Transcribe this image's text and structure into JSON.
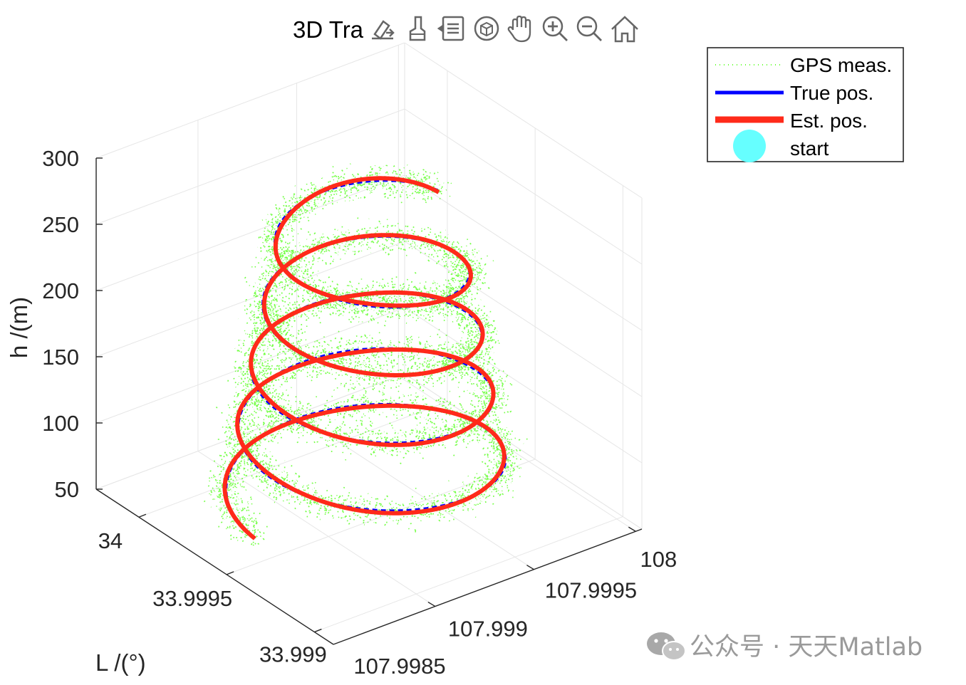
{
  "figure": {
    "title": "3D Tra",
    "toolbar": [
      {
        "icon": "export-icon"
      },
      {
        "icon": "brush-icon"
      },
      {
        "icon": "data-tips-icon"
      },
      {
        "icon": "rotate-3d-icon"
      },
      {
        "icon": "pan-hand-icon"
      },
      {
        "icon": "zoom-in-icon"
      },
      {
        "icon": "zoom-out-icon"
      },
      {
        "icon": "home-icon"
      }
    ],
    "watermark": "公众号 · 天天Matlab"
  },
  "chart_data": {
    "type": "line",
    "title": "3D Tra",
    "xlabel": "L /(°)",
    "zlabel": "h /(m)",
    "ylabel": "",
    "x_ticks": [
      "34",
      "33.9995",
      "33.999"
    ],
    "y_ticks": [
      "108",
      "107.9995",
      "107.999",
      "107.9985"
    ],
    "z_ticks": [
      "300",
      "250",
      "200",
      "150",
      "100",
      "50"
    ],
    "zlim": [
      50,
      300
    ],
    "grid": true,
    "legend_position": "top-right",
    "legend": [
      {
        "label": "GPS meas.",
        "color": "#66ff33",
        "style": "dotted"
      },
      {
        "label": "True pos.",
        "color": "#0000ff",
        "style": "solid"
      },
      {
        "label": "Est. pos.",
        "color": "#ff2a1a",
        "style": "solid-thick"
      },
      {
        "label": "start",
        "color": "#66ffff",
        "style": "marker"
      }
    ],
    "helix": {
      "turns": 4.5,
      "h_start": 60,
      "h_end": 270
    },
    "colors": {
      "gps": "#66ff33",
      "true": "#0000ff",
      "est": "#ff2a1a",
      "start": "#66ffff",
      "axis": "#262626",
      "grid": "#e6e6e6"
    }
  }
}
